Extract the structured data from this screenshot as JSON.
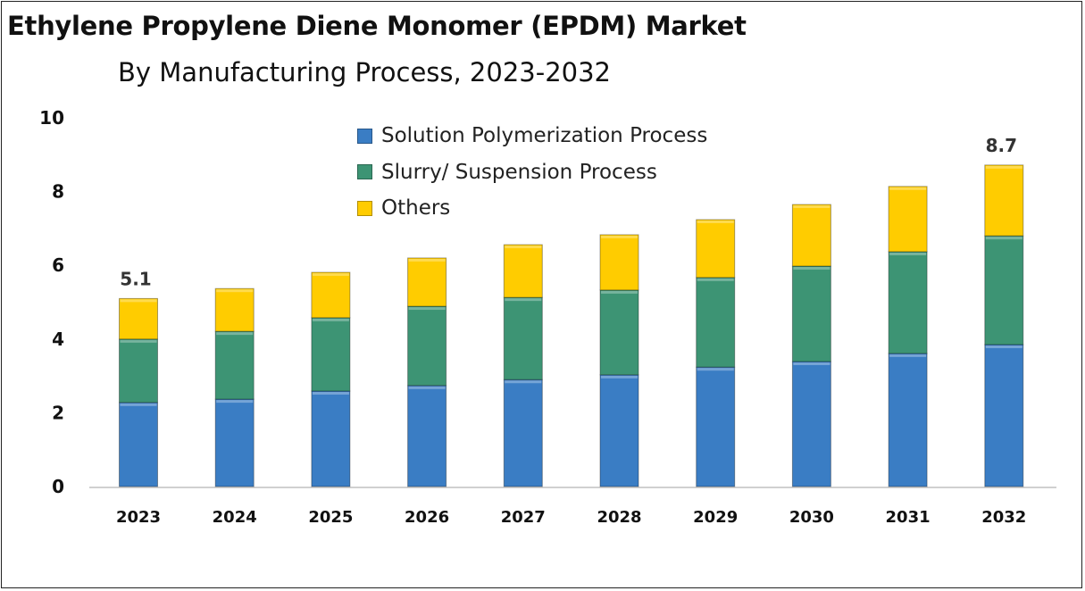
{
  "chart_data": {
    "type": "bar",
    "stacked": true,
    "title": "Ethylene Propylene Diene Monomer (EPDM) Market",
    "subtitle": "By Manufacturing Process, 2023-2032",
    "xlabel": "",
    "ylabel": "",
    "ylim": [
      0,
      10
    ],
    "yticks": [
      "0",
      "2",
      "4",
      "6",
      "8",
      "10"
    ],
    "categories": [
      "2023",
      "2024",
      "2025",
      "2026",
      "2027",
      "2028",
      "2029",
      "2030",
      "2031",
      "2032"
    ],
    "series": [
      {
        "name": "Solution Polymerization Process",
        "color": "#3a7dc4",
        "values": [
          2.28,
          2.37,
          2.59,
          2.74,
          2.9,
          3.03,
          3.24,
          3.39,
          3.61,
          3.85
        ]
      },
      {
        "name": "Slurry/ Suspension Process",
        "color": "#3d9474",
        "values": [
          1.72,
          1.84,
          1.99,
          2.15,
          2.23,
          2.3,
          2.43,
          2.59,
          2.76,
          2.95
        ]
      },
      {
        "name": "Others",
        "color": "#ffcc00",
        "values": [
          1.1,
          1.16,
          1.23,
          1.31,
          1.43,
          1.5,
          1.57,
          1.67,
          1.77,
          1.92
        ]
      }
    ],
    "data_labels": [
      {
        "category": "2023",
        "text": "5.1"
      },
      {
        "category": "2032",
        "text": "8.7"
      }
    ],
    "legend_position": "top-center",
    "grid": false
  }
}
